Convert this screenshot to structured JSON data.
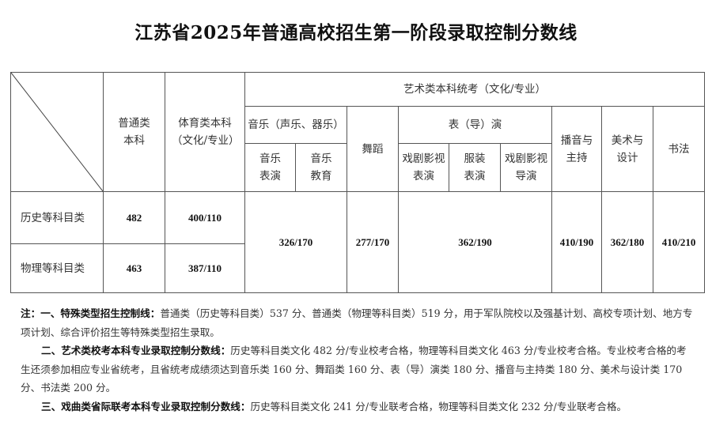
{
  "title": "江苏省2025年普通高校招生第一阶段录取控制分数线",
  "table": {
    "headers": {
      "general": "普通类本科",
      "sports": "体育类本科（文化/专业）",
      "art": "艺术类本科统考（文化/专业）",
      "music": "音乐（声乐、器乐）",
      "music_perf": "音乐表演",
      "music_edu": "音乐教育",
      "dance": "舞蹈",
      "acting": "表（导）演",
      "drama_acting": "戏剧影视表演",
      "fashion": "服装表演",
      "drama_direct": "戏剧影视导演",
      "broadcast": "播音与主持",
      "fine_arts": "美术与设计",
      "calligraphy": "书法"
    },
    "rows": [
      {
        "label": "历史等科目类",
        "general": "482",
        "sports": "400/110"
      },
      {
        "label": "物理等科目类",
        "general": "463",
        "sports": "387/110"
      }
    ],
    "shared": {
      "music": "326/170",
      "dance": "277/170",
      "acting": "362/190",
      "broadcast": "410/190",
      "fine_arts": "362/180",
      "calligraphy": "410/210"
    }
  },
  "notes": {
    "n1_head": "注：一、特殊类型招生控制线：",
    "n1_body": "普通类（历史等科目类）537 分、普通类（物理等科目类）519 分，用于军队院校以及强基计划、高校专项计划、地方专项计划、综合评价招生等特殊类型招生录取。",
    "n2_head": "二、艺术类校考本科专业录取控制分数线：",
    "n2_body": "历史等科目类文化 482 分/专业校考合格，物理等科目类文化 463 分/专业校考合格。专业校考合格的考生还须参加相应专业省统考，且省统考成绩须达到音乐类 160 分、舞蹈类 160 分、表（导）演类 180 分、播音与主持类 180 分、美术与设计类 170 分、书法类 200 分。",
    "n3_head": "三、戏曲类省际联考本科专业录取控制分数线：",
    "n3_body": "历史等科目类文化 241 分/专业联考合格，物理等科目类文化 232 分/专业联考合格。"
  }
}
